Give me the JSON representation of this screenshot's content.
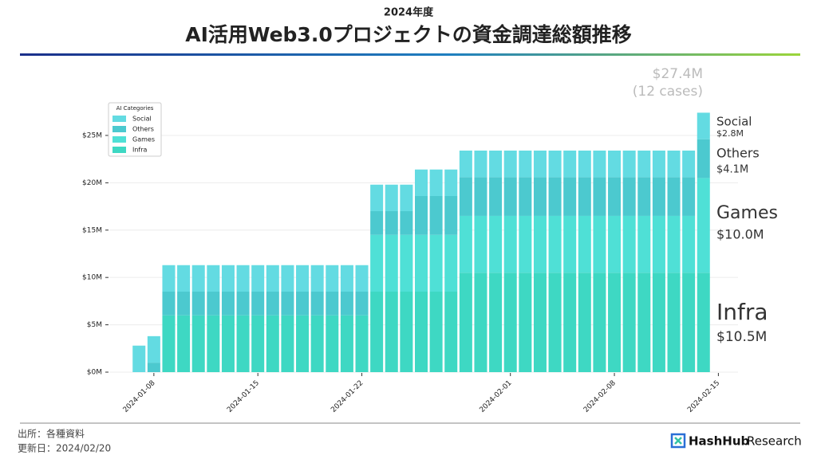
{
  "header": {
    "subtitle": "2024年度",
    "title": "AI活用Web3.0プロジェクトの資金調達総額推移"
  },
  "chart_data": {
    "type": "stacked_bar",
    "legend_title": "AI Categories",
    "legend": "upper left",
    "grid": true,
    "x": [
      "2024-01-07",
      "2024-01-08",
      "2024-01-09",
      "2024-01-10",
      "2024-01-11",
      "2024-01-12",
      "2024-01-13",
      "2024-01-14",
      "2024-01-15",
      "2024-01-16",
      "2024-01-17",
      "2024-01-18",
      "2024-01-19",
      "2024-01-20",
      "2024-01-21",
      "2024-01-22",
      "2024-01-23",
      "2024-01-24",
      "2024-01-25",
      "2024-01-26",
      "2024-01-27",
      "2024-01-28",
      "2024-01-29",
      "2024-01-30",
      "2024-01-31",
      "2024-02-01",
      "2024-02-02",
      "2024-02-03",
      "2024-02-04",
      "2024-02-05",
      "2024-02-06",
      "2024-02-07",
      "2024-02-08",
      "2024-02-09",
      "2024-02-10",
      "2024-02-11",
      "2024-02-12",
      "2024-02-13",
      "2024-02-14"
    ],
    "xlim": [
      "2024-01-05",
      "2024-02-16"
    ],
    "xticks": [
      "2024-01-08",
      "2024-01-15",
      "2024-01-22",
      "2024-02-01",
      "2024-02-08",
      "2024-02-15"
    ],
    "ylim": [
      0,
      28
    ],
    "yticks": [
      {
        "value": 0,
        "label": "$0M"
      },
      {
        "value": 5,
        "label": "$5M"
      },
      {
        "value": 10,
        "label": "$10M"
      },
      {
        "value": 15,
        "label": "$15M"
      },
      {
        "value": 20,
        "label": "$20M"
      },
      {
        "value": 25,
        "label": "$25M"
      }
    ],
    "series": [
      {
        "name": "Infra",
        "color": "#3ed8c3",
        "values": [
          0,
          0,
          6.0,
          6.0,
          6.0,
          6.0,
          6.0,
          6.0,
          6.0,
          6.0,
          6.0,
          6.0,
          6.0,
          6.0,
          6.0,
          6.0,
          8.5,
          8.5,
          8.5,
          8.5,
          8.5,
          8.5,
          10.5,
          10.5,
          10.5,
          10.5,
          10.5,
          10.5,
          10.5,
          10.5,
          10.5,
          10.5,
          10.5,
          10.5,
          10.5,
          10.5,
          10.5,
          10.5,
          10.5
        ],
        "value_labels": [
          null,
          null,
          null,
          null,
          null,
          null,
          null,
          null,
          null,
          null,
          null,
          null,
          null,
          null,
          null,
          null,
          null,
          null,
          null,
          null,
          null,
          null,
          null,
          null,
          null,
          null,
          null,
          null,
          null,
          null,
          null,
          null,
          null,
          null,
          null,
          null,
          null,
          null,
          "$10.5M"
        ]
      },
      {
        "name": "Games",
        "color": "#4fe0d6",
        "values": [
          0,
          0,
          0,
          0,
          0,
          0,
          0,
          0,
          0,
          0,
          0,
          0,
          0,
          0,
          0,
          0,
          6.0,
          6.0,
          6.0,
          6.0,
          6.0,
          6.0,
          6.0,
          6.0,
          6.0,
          6.0,
          6.0,
          6.0,
          6.0,
          6.0,
          6.0,
          6.0,
          6.0,
          6.0,
          6.0,
          6.0,
          6.0,
          6.0,
          10.0
        ],
        "value_labels": [
          null,
          null,
          null,
          null,
          null,
          null,
          null,
          null,
          null,
          null,
          null,
          null,
          null,
          null,
          null,
          null,
          null,
          null,
          null,
          null,
          null,
          null,
          null,
          null,
          null,
          null,
          null,
          null,
          null,
          null,
          null,
          null,
          null,
          null,
          null,
          null,
          null,
          null,
          "$10.0M"
        ]
      },
      {
        "name": "Others",
        "color": "#4cc9cf",
        "values": [
          0,
          1.0,
          2.5,
          2.5,
          2.5,
          2.5,
          2.5,
          2.5,
          2.5,
          2.5,
          2.5,
          2.5,
          2.5,
          2.5,
          2.5,
          2.5,
          2.5,
          2.5,
          2.5,
          4.1,
          4.1,
          4.1,
          4.1,
          4.1,
          4.1,
          4.1,
          4.1,
          4.1,
          4.1,
          4.1,
          4.1,
          4.1,
          4.1,
          4.1,
          4.1,
          4.1,
          4.1,
          4.1,
          4.1
        ],
        "value_labels": [
          null,
          null,
          null,
          null,
          null,
          null,
          null,
          null,
          null,
          null,
          null,
          null,
          null,
          null,
          null,
          null,
          null,
          null,
          null,
          null,
          null,
          null,
          null,
          null,
          null,
          null,
          null,
          null,
          null,
          null,
          null,
          null,
          null,
          null,
          null,
          null,
          null,
          null,
          "$4.1M"
        ]
      },
      {
        "name": "Social",
        "color": "#63dbe2",
        "values": [
          2.8,
          2.8,
          2.8,
          2.8,
          2.8,
          2.8,
          2.8,
          2.8,
          2.8,
          2.8,
          2.8,
          2.8,
          2.8,
          2.8,
          2.8,
          2.8,
          2.8,
          2.8,
          2.8,
          2.8,
          2.8,
          2.8,
          2.8,
          2.8,
          2.8,
          2.8,
          2.8,
          2.8,
          2.8,
          2.8,
          2.8,
          2.8,
          2.8,
          2.8,
          2.8,
          2.8,
          2.8,
          2.8,
          2.8
        ],
        "value_labels": [
          null,
          null,
          null,
          null,
          null,
          null,
          null,
          null,
          null,
          null,
          null,
          null,
          null,
          null,
          null,
          null,
          null,
          null,
          null,
          null,
          null,
          null,
          null,
          null,
          null,
          null,
          null,
          null,
          null,
          null,
          null,
          null,
          null,
          null,
          null,
          null,
          null,
          null,
          "$2.8M"
        ]
      }
    ],
    "total": {
      "value": 27.4,
      "label": "$27.4M"
    },
    "cases_note": "(12 cases)"
  },
  "footer": {
    "source": "出所：各種資料",
    "updated": "更新日：2024/02/20",
    "brand_main": "HashHub",
    "brand_sub": "Research"
  }
}
